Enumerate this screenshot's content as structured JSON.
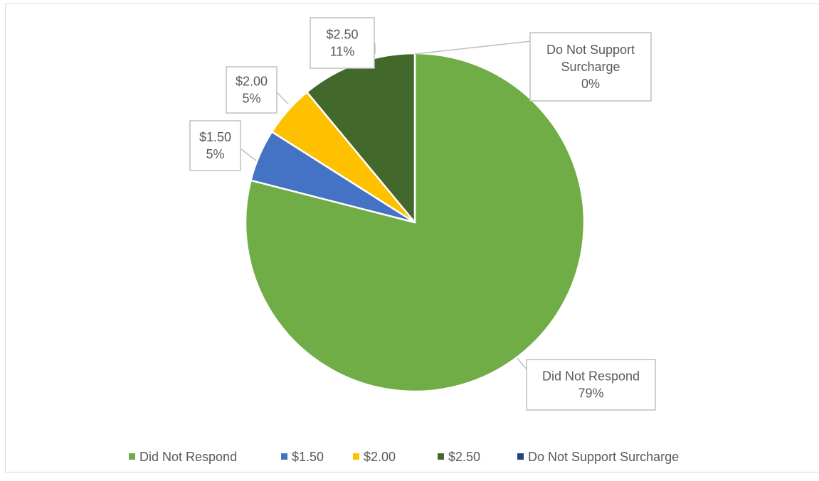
{
  "chart_data": {
    "type": "pie",
    "start_angle_deg": 0,
    "direction": "clockwise",
    "categories": [
      "Did Not Respond",
      "$1.50",
      "$2.00",
      "$2.50",
      "Do Not Support Surcharge"
    ],
    "values": [
      79,
      5,
      5,
      11,
      0
    ],
    "colors": [
      "#70ad47",
      "#4472c4",
      "#ffc000",
      "#43682b",
      "#264478"
    ],
    "data_labels": [
      {
        "category": "Did Not Respond",
        "value": "79%"
      },
      {
        "category": "$1.50",
        "value": "5%"
      },
      {
        "category": "$2.00",
        "value": "5%"
      },
      {
        "category": "$2.50",
        "value": "11%"
      },
      {
        "category": "Do Not Support Surcharge",
        "value": "0%",
        "category_lines": [
          "Do Not Support",
          "Surcharge"
        ]
      }
    ],
    "legend": {
      "position": "bottom",
      "entries": [
        "Did Not Respond",
        "$1.50",
        "$2.00",
        "$2.50",
        "Do Not Support Surcharge"
      ]
    }
  }
}
